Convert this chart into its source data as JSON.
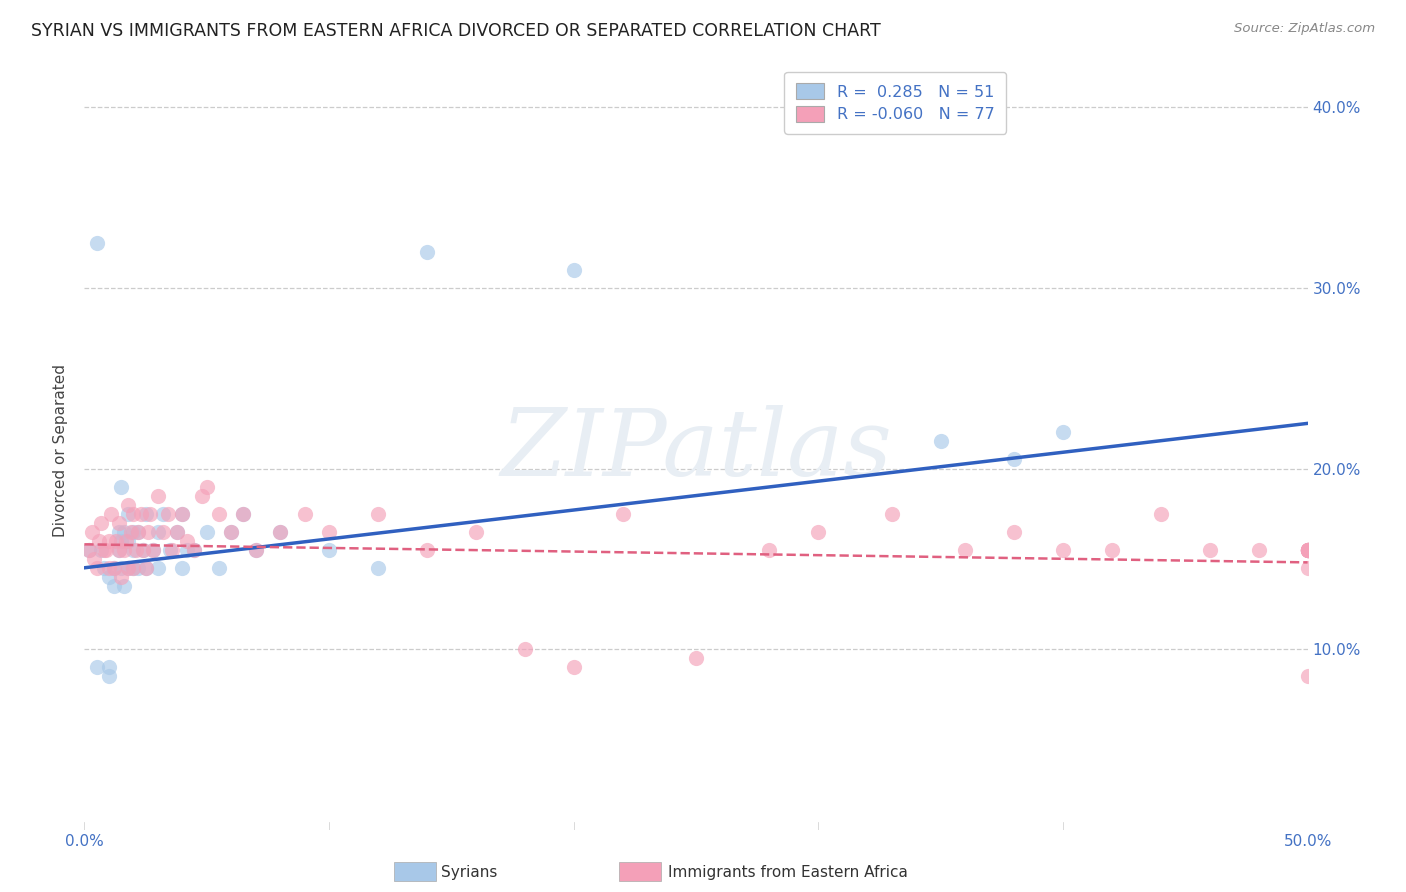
{
  "title": "SYRIAN VS IMMIGRANTS FROM EASTERN AFRICA DIVORCED OR SEPARATED CORRELATION CHART",
  "source_text": "Source: ZipAtlas.com",
  "ylabel": "Divorced or Separated",
  "xlabel_syrians": "Syrians",
  "xlabel_eastern": "Immigrants from Eastern Africa",
  "xmin": 0.0,
  "xmax": 0.5,
  "ymin": 0.0,
  "ymax": 0.42,
  "legend_r_syrian": " 0.285",
  "legend_n_syrian": "51",
  "legend_r_eastern": "-0.060",
  "legend_n_eastern": "77",
  "syrian_color": "#a8c8e8",
  "eastern_color": "#f4a0b8",
  "syrian_line_color": "#3060c0",
  "eastern_line_color": "#e06080",
  "background_color": "#ffffff",
  "watermark_color": "#e8eef4",
  "syrians_x": [
    0.002,
    0.005,
    0.005,
    0.007,
    0.008,
    0.01,
    0.01,
    0.01,
    0.012,
    0.012,
    0.014,
    0.014,
    0.015,
    0.015,
    0.015,
    0.016,
    0.016,
    0.018,
    0.018,
    0.018,
    0.02,
    0.02,
    0.02,
    0.022,
    0.022,
    0.024,
    0.025,
    0.025,
    0.028,
    0.03,
    0.03,
    0.032,
    0.035,
    0.038,
    0.04,
    0.04,
    0.042,
    0.045,
    0.05,
    0.055,
    0.06,
    0.065,
    0.07,
    0.08,
    0.1,
    0.12,
    0.14,
    0.2,
    0.35,
    0.38,
    0.4
  ],
  "syrians_y": [
    0.155,
    0.325,
    0.09,
    0.155,
    0.145,
    0.14,
    0.085,
    0.09,
    0.145,
    0.135,
    0.165,
    0.155,
    0.145,
    0.16,
    0.19,
    0.135,
    0.165,
    0.145,
    0.16,
    0.175,
    0.145,
    0.155,
    0.165,
    0.145,
    0.165,
    0.155,
    0.145,
    0.175,
    0.155,
    0.145,
    0.165,
    0.175,
    0.155,
    0.165,
    0.145,
    0.175,
    0.155,
    0.155,
    0.165,
    0.145,
    0.165,
    0.175,
    0.155,
    0.165,
    0.155,
    0.145,
    0.32,
    0.31,
    0.215,
    0.205,
    0.22
  ],
  "eastern_x": [
    0.002,
    0.003,
    0.004,
    0.005,
    0.006,
    0.007,
    0.008,
    0.009,
    0.01,
    0.01,
    0.011,
    0.012,
    0.013,
    0.014,
    0.014,
    0.015,
    0.016,
    0.017,
    0.018,
    0.018,
    0.019,
    0.02,
    0.02,
    0.021,
    0.022,
    0.023,
    0.024,
    0.025,
    0.026,
    0.027,
    0.028,
    0.03,
    0.032,
    0.034,
    0.036,
    0.038,
    0.04,
    0.042,
    0.045,
    0.048,
    0.05,
    0.055,
    0.06,
    0.065,
    0.07,
    0.08,
    0.09,
    0.1,
    0.12,
    0.14,
    0.16,
    0.18,
    0.2,
    0.22,
    0.25,
    0.28,
    0.3,
    0.33,
    0.36,
    0.38,
    0.4,
    0.42,
    0.44,
    0.46,
    0.48,
    0.5,
    0.5,
    0.5,
    0.5,
    0.5,
    0.5,
    0.5,
    0.5,
    0.5,
    0.5,
    0.5,
    0.5
  ],
  "eastern_y": [
    0.155,
    0.165,
    0.15,
    0.145,
    0.16,
    0.17,
    0.155,
    0.155,
    0.145,
    0.16,
    0.175,
    0.145,
    0.16,
    0.155,
    0.17,
    0.14,
    0.155,
    0.16,
    0.145,
    0.18,
    0.165,
    0.145,
    0.175,
    0.155,
    0.165,
    0.175,
    0.155,
    0.145,
    0.165,
    0.175,
    0.155,
    0.185,
    0.165,
    0.175,
    0.155,
    0.165,
    0.175,
    0.16,
    0.155,
    0.185,
    0.19,
    0.175,
    0.165,
    0.175,
    0.155,
    0.165,
    0.175,
    0.165,
    0.175,
    0.155,
    0.165,
    0.1,
    0.09,
    0.175,
    0.095,
    0.155,
    0.165,
    0.175,
    0.155,
    0.165,
    0.155,
    0.155,
    0.175,
    0.155,
    0.155,
    0.155,
    0.155,
    0.155,
    0.155,
    0.155,
    0.145,
    0.155,
    0.155,
    0.155,
    0.155,
    0.155,
    0.085
  ],
  "syrian_line_x": [
    0.0,
    0.5
  ],
  "syrian_line_y": [
    0.145,
    0.225
  ],
  "eastern_line_x": [
    0.0,
    0.5
  ],
  "eastern_line_y": [
    0.158,
    0.148
  ]
}
